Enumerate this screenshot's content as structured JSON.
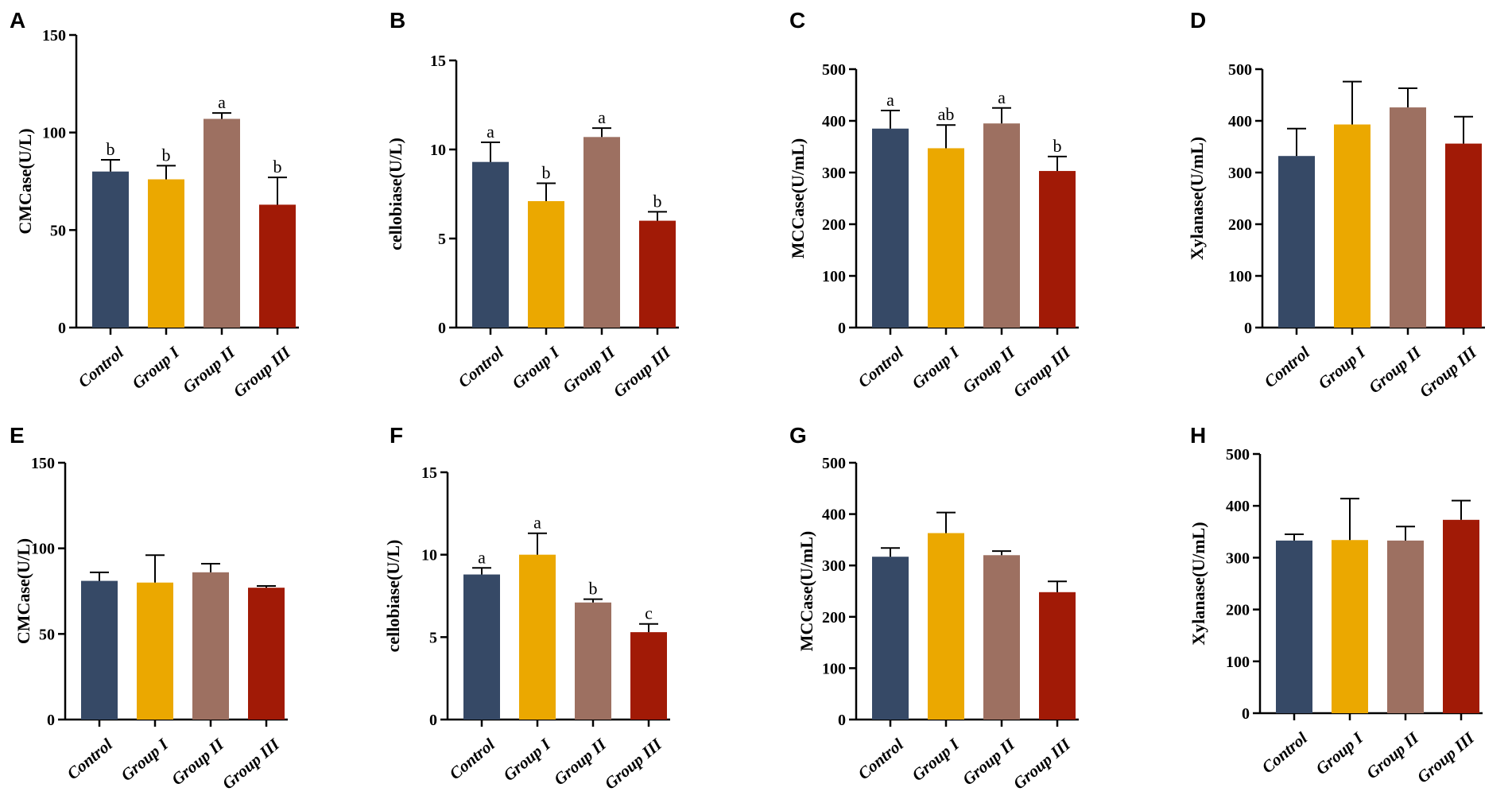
{
  "colors": {
    "Control": "#364966",
    "Group I": "#eba800",
    "Group II": "#9d7061",
    "Group III": "#a11a06",
    "axis": "#000000"
  },
  "chart_data": [
    {
      "panel": "A",
      "type": "bar",
      "categories": [
        "Control",
        "Group I",
        "Group II",
        "Group III"
      ],
      "values": [
        80,
        76,
        107,
        63
      ],
      "errors": [
        6,
        7,
        3,
        14
      ],
      "significance": [
        "b",
        "b",
        "a",
        "b"
      ],
      "ylabel": "CMCase(U/L)",
      "ylim": [
        0,
        150
      ],
      "yticks": [
        0,
        50,
        100,
        150
      ],
      "ytick_labels": [
        "0",
        "50",
        "100",
        "150"
      ]
    },
    {
      "panel": "B",
      "type": "bar",
      "categories": [
        "Control",
        "Group I",
        "Group II",
        "Group III"
      ],
      "values": [
        9.3,
        7.1,
        10.7,
        6.0
      ],
      "errors": [
        1.1,
        1.0,
        0.5,
        0.5
      ],
      "significance": [
        "a",
        "b",
        "a",
        "b"
      ],
      "ylabel": "cellobiase(U/L)",
      "ylim": [
        0,
        15
      ],
      "yticks": [
        0,
        5,
        10,
        15
      ],
      "ytick_labels": [
        "0",
        "5",
        "10",
        "15"
      ]
    },
    {
      "panel": "C",
      "type": "bar",
      "categories": [
        "Control",
        "Group I",
        "Group II",
        "Group III"
      ],
      "values": [
        385,
        347,
        395,
        303
      ],
      "errors": [
        35,
        45,
        30,
        28
      ],
      "significance": [
        "a",
        "ab",
        "a",
        "b"
      ],
      "ylabel": "MCCase(U/mL)",
      "ylim": [
        0,
        500
      ],
      "yticks": [
        0,
        100,
        200,
        300,
        400,
        500
      ],
      "ytick_labels": [
        "0",
        "100",
        "200",
        "300",
        "400",
        "500"
      ]
    },
    {
      "panel": "D",
      "type": "bar",
      "categories": [
        "Control",
        "Group I",
        "Group II",
        "Group III"
      ],
      "values": [
        332,
        393,
        426,
        356
      ],
      "errors": [
        53,
        83,
        37,
        52
      ],
      "significance": [
        "",
        "",
        "",
        ""
      ],
      "ylabel": "Xylanase(U/mL)",
      "ylim": [
        0,
        500
      ],
      "yticks": [
        0,
        100,
        200,
        300,
        400,
        500
      ],
      "ytick_labels": [
        "0",
        "100",
        "200",
        "300",
        "400",
        "500"
      ]
    },
    {
      "panel": "E",
      "type": "bar",
      "categories": [
        "Control",
        "Group I",
        "Group II",
        "Group III"
      ],
      "values": [
        81,
        80,
        86,
        77
      ],
      "errors": [
        5,
        16,
        5,
        1
      ],
      "significance": [
        "",
        "",
        "",
        ""
      ],
      "ylabel": "CMCase(U/L)",
      "ylim": [
        0,
        150
      ],
      "yticks": [
        0,
        50,
        100,
        150
      ],
      "ytick_labels": [
        "0",
        "50",
        "100",
        "150"
      ]
    },
    {
      "panel": "F",
      "type": "bar",
      "categories": [
        "Control",
        "Group I",
        "Group II",
        "Group III"
      ],
      "values": [
        8.8,
        10.0,
        7.1,
        5.3
      ],
      "errors": [
        0.4,
        1.3,
        0.2,
        0.5
      ],
      "significance": [
        "a",
        "a",
        "b",
        "c"
      ],
      "ylabel": "cellobiase(U/L)",
      "ylim": [
        0,
        15
      ],
      "yticks": [
        0,
        5,
        10,
        15
      ],
      "ytick_labels": [
        "0",
        "5",
        "10",
        "15"
      ]
    },
    {
      "panel": "G",
      "type": "bar",
      "categories": [
        "Control",
        "Group I",
        "Group II",
        "Group III"
      ],
      "values": [
        317,
        363,
        320,
        248
      ],
      "errors": [
        17,
        40,
        8,
        21
      ],
      "significance": [
        "",
        "",
        "",
        ""
      ],
      "ylabel": "MCCase(U/mL)",
      "ylim": [
        0,
        500
      ],
      "yticks": [
        0,
        100,
        200,
        300,
        400,
        500
      ],
      "ytick_labels": [
        "0",
        "100",
        "200",
        "300",
        "400",
        "500"
      ]
    },
    {
      "panel": "H",
      "type": "bar",
      "categories": [
        "Control",
        "Group I",
        "Group II",
        "Group III"
      ],
      "values": [
        333,
        334,
        333,
        373
      ],
      "errors": [
        12,
        80,
        27,
        37
      ],
      "significance": [
        "",
        "",
        "",
        ""
      ],
      "ylabel": "Xylanase(U/mL)",
      "ylim": [
        0,
        500
      ],
      "yticks": [
        0,
        100,
        200,
        300,
        400,
        500
      ],
      "ytick_labels": [
        "0",
        "100",
        "200",
        "300",
        "400",
        "500"
      ]
    }
  ]
}
